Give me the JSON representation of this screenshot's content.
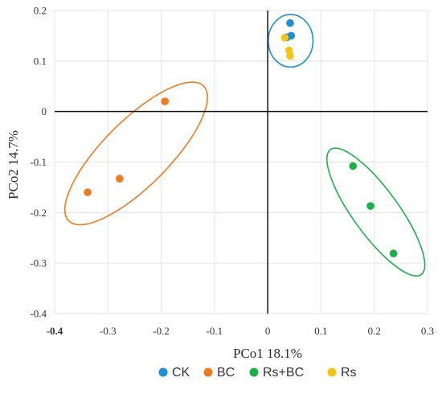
{
  "chart_data": {
    "type": "scatter",
    "xlabel": "PCo1 18.1%",
    "ylabel": "PCo2 14.7%",
    "xlim": [
      -0.4,
      0.3
    ],
    "ylim": [
      -0.4,
      0.2
    ],
    "x_ticks": [
      "-0.4",
      "-0.3",
      "-0.2",
      "-0.1",
      "0",
      "0.1",
      "0.2",
      "0.3"
    ],
    "y_ticks": [
      "0.2",
      "0.1",
      "0",
      "-0.1",
      "-0.2",
      "-0.3",
      "-0.4"
    ],
    "x_tick_values": [
      -0.4,
      -0.3,
      -0.2,
      -0.1,
      0,
      0.1,
      0.2,
      0.3
    ],
    "y_tick_values": [
      0.2,
      0.1,
      0,
      -0.1,
      -0.2,
      -0.3,
      -0.4
    ],
    "grid": true,
    "legend_position": "bottom",
    "series": [
      {
        "name": "CK",
        "color": "#1f8fd6",
        "points": [
          {
            "x": 0.042,
            "y": 0.175
          },
          {
            "x": 0.044,
            "y": 0.15
          },
          {
            "x": 0.036,
            "y": 0.147
          }
        ],
        "ellipse": {
          "cx": 0.043,
          "cy": 0.14,
          "rx": 0.042,
          "ry": 0.052,
          "rotation": 0
        }
      },
      {
        "name": "BC",
        "color": "#f07a1e",
        "points": [
          {
            "x": -0.193,
            "y": 0.02
          },
          {
            "x": -0.278,
            "y": -0.133
          },
          {
            "x": -0.338,
            "y": -0.16
          }
        ],
        "ellipse": {
          "cx": -0.247,
          "cy": -0.083,
          "rx": 0.179,
          "ry": 0.065,
          "rotation": -45
        }
      },
      {
        "name": "Rs+BC",
        "color": "#1bb04a",
        "points": [
          {
            "x": 0.16,
            "y": -0.108
          },
          {
            "x": 0.193,
            "y": -0.187
          },
          {
            "x": 0.236,
            "y": -0.281
          }
        ],
        "ellipse": {
          "cx": 0.203,
          "cy": -0.199,
          "rx": 0.145,
          "ry": 0.045,
          "rotation": 54
        }
      },
      {
        "name": "Rs",
        "color": "#f6c215",
        "points": [
          {
            "x": 0.032,
            "y": 0.146
          },
          {
            "x": 0.04,
            "y": 0.121
          },
          {
            "x": 0.042,
            "y": 0.11
          }
        ],
        "ellipse": null
      }
    ]
  }
}
